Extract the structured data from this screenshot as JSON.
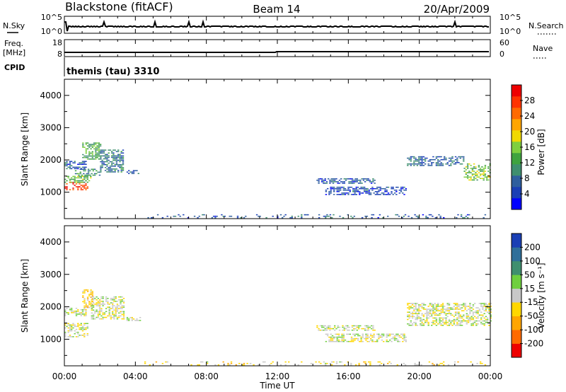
{
  "header": {
    "station": "Blackstone (fitACF)",
    "beam": "Beam 14",
    "date": "20/Apr/2009"
  },
  "status_panels": {
    "nsky_label": "N.Sky",
    "nsky_ticks": [
      "10^5",
      "10^0"
    ],
    "nsearch_label": "N.Search",
    "nsearch_ticks": [
      "10^5",
      "10^0"
    ],
    "freq_label_top": "Freq.",
    "freq_label_bottom": "[MHz]",
    "freq_ticks": [
      "18",
      "8"
    ],
    "nave_label": "Nave",
    "nave_ticks": [
      "60",
      "0"
    ],
    "cpid_label": "CPID",
    "cpid_value": "themis (tau) 3310"
  },
  "x_axis": {
    "title": "Time UT",
    "tick_labels": [
      "00:00",
      "04:00",
      "08:00",
      "12:00",
      "16:00",
      "20:00",
      "00:00"
    ]
  },
  "power_scale": {
    "title": "Power [dB]",
    "labels": [
      "28",
      "24",
      "20",
      "16",
      "12",
      "8",
      "4"
    ],
    "colors": [
      "#0000ff",
      "#1a3fb5",
      "#2f5f9e",
      "#3f8f6f",
      "#3fa33f",
      "#7fcf3f",
      "#f0d800",
      "#ffa500",
      "#ff6a00",
      "#ff3300",
      "#ee0000"
    ]
  },
  "velocity_scale": {
    "title": "Velocity [m s⁻¹]",
    "labels": [
      "200",
      "100",
      "50",
      "15",
      "-15",
      "-50",
      "-100",
      "-200"
    ],
    "colors": [
      "#1a3fb5",
      "#2f6f9a",
      "#3f8f6f",
      "#6fcf3f",
      "#c8c8c8",
      "#ffd700",
      "#ffa500",
      "#ff6a00",
      "#ee0000"
    ]
  },
  "chart_data": [
    {
      "type": "heatmap",
      "name": "power",
      "ylabel": "Slant Range [km]",
      "xlim": [
        0,
        24
      ],
      "ylim": [
        180,
        4500
      ],
      "yticks": [
        1000,
        2000,
        3000,
        4000
      ],
      "colorbar_title": "Power [dB]",
      "colorbar_range": [
        0,
        30
      ],
      "regions": [
        {
          "t": [
            0.0,
            1.3
          ],
          "r": [
            1050,
            1280
          ],
          "value": 26
        },
        {
          "t": [
            0.0,
            1.5
          ],
          "r": [
            1280,
            1500
          ],
          "value": 14
        },
        {
          "t": [
            0.5,
            2.0
          ],
          "r": [
            1500,
            1700
          ],
          "value": 10
        },
        {
          "t": [
            0.0,
            1.2
          ],
          "r": [
            1700,
            1950
          ],
          "value": 6
        },
        {
          "t": [
            1.0,
            2.0
          ],
          "r": [
            2000,
            2500
          ],
          "value": 12
        },
        {
          "t": [
            2.0,
            3.3
          ],
          "r": [
            1600,
            2300
          ],
          "value": 8
        },
        {
          "t": [
            3.5,
            4.3
          ],
          "r": [
            1550,
            1650
          ],
          "value": 6
        },
        {
          "t": [
            14.2,
            17.5
          ],
          "r": [
            1250,
            1400
          ],
          "value": 6
        },
        {
          "t": [
            14.7,
            19.2
          ],
          "r": [
            900,
            1150
          ],
          "value": 5
        },
        {
          "t": [
            19.3,
            22.5
          ],
          "r": [
            1800,
            2100
          ],
          "value": 7
        },
        {
          "t": [
            22.5,
            24.0
          ],
          "r": [
            1350,
            1850
          ],
          "value": 14
        },
        {
          "t": [
            4.5,
            24.0
          ],
          "r": [
            180,
            280
          ],
          "value": 6
        }
      ]
    },
    {
      "type": "heatmap",
      "name": "velocity",
      "ylabel": "Slant Range [km]",
      "xlim": [
        0,
        24
      ],
      "ylim": [
        180,
        4500
      ],
      "yticks": [
        1000,
        2000,
        3000,
        4000
      ],
      "colorbar_title": "Velocity [m s⁻¹]",
      "colorbar_range": [
        -250,
        250
      ],
      "regions": [
        {
          "t": [
            0.0,
            1.3
          ],
          "r": [
            1050,
            1500
          ],
          "value": 0
        },
        {
          "t": [
            0.0,
            1.2
          ],
          "r": [
            1700,
            1950
          ],
          "value": 0
        },
        {
          "t": [
            1.0,
            1.6
          ],
          "r": [
            1950,
            2500
          ],
          "value": -70
        },
        {
          "t": [
            1.5,
            3.3
          ],
          "r": [
            1600,
            2300
          ],
          "value": 0
        },
        {
          "t": [
            3.5,
            4.3
          ],
          "r": [
            1550,
            1650
          ],
          "value": 0
        },
        {
          "t": [
            14.2,
            17.5
          ],
          "r": [
            1250,
            1400
          ],
          "value": 0
        },
        {
          "t": [
            14.7,
            19.2
          ],
          "r": [
            900,
            1150
          ],
          "value": 0
        },
        {
          "t": [
            19.3,
            24.0
          ],
          "r": [
            1400,
            2100
          ],
          "value": 0
        },
        {
          "t": [
            4.5,
            24.0
          ],
          "r": [
            180,
            280
          ],
          "value": -30
        }
      ]
    }
  ]
}
